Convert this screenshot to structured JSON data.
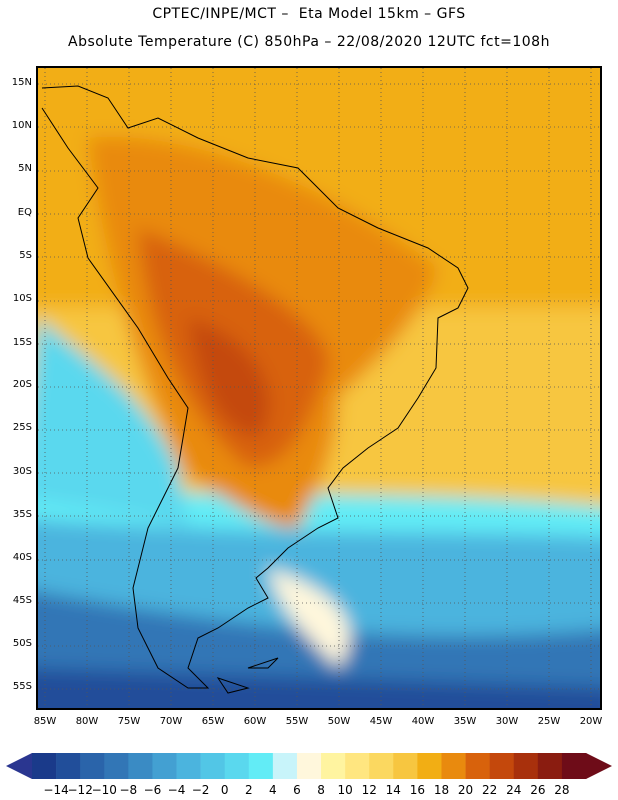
{
  "header": {
    "line1": "CPTEC/INPE/MCT –  Eta Model 15km – GFS",
    "line2": "Absolute Temperature (C) 850hPa – 22/08/2020 12UTC fct=108h"
  },
  "axes": {
    "lat_labels": [
      "15N",
      "10N",
      "5N",
      "EQ",
      "5S",
      "10S",
      "15S",
      "20S",
      "25S",
      "30S",
      "35S",
      "40S",
      "45S",
      "50S",
      "55S"
    ],
    "lon_labels": [
      "85W",
      "80W",
      "75W",
      "70W",
      "65W",
      "60W",
      "55W",
      "50W",
      "45W",
      "40W",
      "35W",
      "30W",
      "25W",
      "20W"
    ]
  },
  "colorbar": {
    "tick_labels": [
      "-14",
      "-12",
      "-10",
      "-8",
      "-6",
      "-4",
      "-2",
      "0",
      "2",
      "4",
      "6",
      "8",
      "10",
      "12",
      "14",
      "16",
      "18",
      "20",
      "22",
      "24",
      "26",
      "28"
    ],
    "colors": [
      "#1a3a8a",
      "#214e9a",
      "#2a64aa",
      "#3276b6",
      "#3a8bc4",
      "#43a0d2",
      "#4bb4de",
      "#52c6e6",
      "#5ad8ee",
      "#62ecf6",
      "#c8f4fa",
      "#fff7dc",
      "#fff4a0",
      "#ffe680",
      "#fbd860",
      "#f7c640",
      "#f2ae14",
      "#e98a0e",
      "#d8620c",
      "#c4480c",
      "#a8300c",
      "#8a1c10",
      "#6e0c18"
    ],
    "under_color": "#2a3690",
    "over_color": "#6e0c18"
  },
  "map": {
    "region": "South America",
    "field": "850hPa temperature"
  }
}
